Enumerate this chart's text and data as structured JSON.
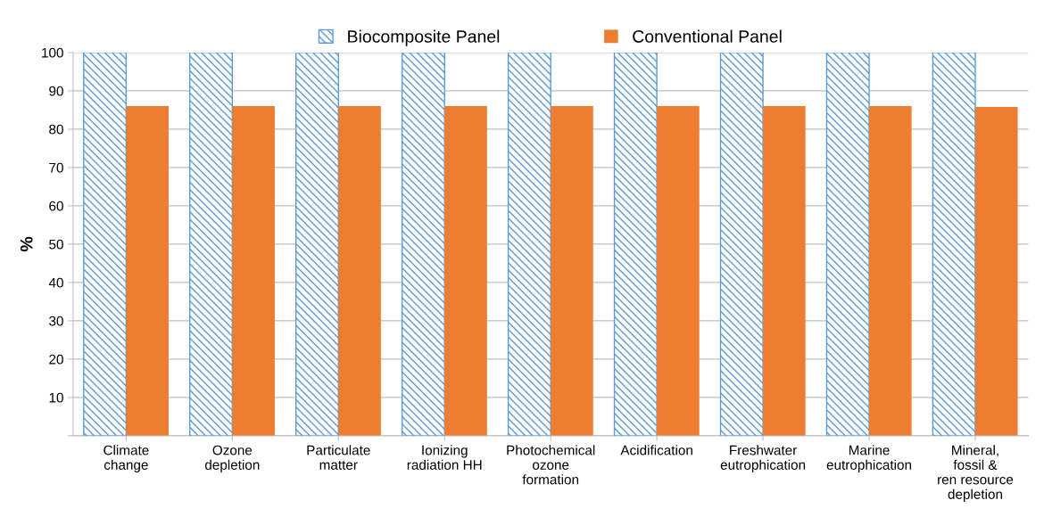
{
  "chart_data": {
    "type": "bar",
    "ylabel": "%",
    "categories": [
      "Climate\nchange",
      "Ozone\ndepletion",
      "Particulate\nmatter",
      "Ionizing\nradiation HH",
      "Photochemical\nozone\nformation",
      "Acidification",
      "Freshwater\neutrophication",
      "Marine\neutrophication",
      "Mineral,\nfossil &\nren resource\ndepletion"
    ],
    "series": [
      {
        "name": "Biocomposite Panel",
        "color": "#5b9bd5",
        "values": [
          100,
          100,
          100,
          100,
          100,
          100,
          100,
          100,
          100
        ]
      },
      {
        "name": "Conventional Panel",
        "color": "#ed7d31",
        "values": [
          86,
          86,
          86,
          86,
          86,
          86,
          86,
          86,
          85.8
        ]
      }
    ],
    "ylim": [
      0,
      100
    ],
    "yticks": [
      {
        "value": 0,
        "label": null
      },
      10,
      20,
      30,
      40,
      50,
      60,
      70,
      80,
      90,
      100
    ],
    "grid": "y",
    "legend": "top"
  }
}
